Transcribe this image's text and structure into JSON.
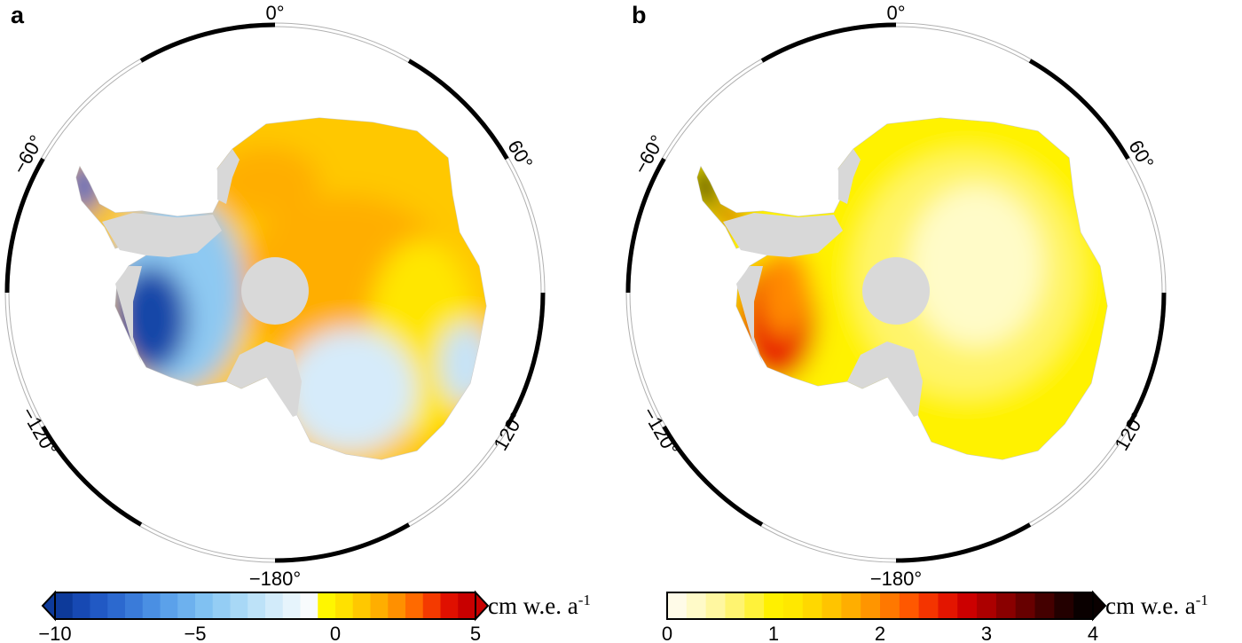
{
  "panels": [
    {
      "id": "a",
      "label": "a",
      "longitude_labels": [
        "0°",
        "60°",
        "120°",
        "−180°",
        "−120°",
        "−60°"
      ],
      "colorbar": {
        "ticks": [
          "−10",
          "−5",
          "0",
          "5"
        ],
        "range": [
          -10,
          5
        ],
        "extend": "both",
        "unit": "cm w.e. a",
        "unit_superscript": "-1",
        "colors": [
          "#0d3a9a",
          "#1749b3",
          "#2159c4",
          "#2c69cf",
          "#3a7bd9",
          "#4a8fe3",
          "#5ba1ea",
          "#6db1ee",
          "#80c1f2",
          "#94cdf4",
          "#a8d8f6",
          "#bde2f8",
          "#d2ebfa",
          "#e6f4fc",
          "#f8fbfd",
          "#fff600",
          "#ffe100",
          "#ffc800",
          "#ffae00",
          "#ff9000",
          "#ff6a00",
          "#f43a00",
          "#e01000",
          "#c80000"
        ]
      }
    },
    {
      "id": "b",
      "label": "b",
      "longitude_labels": [
        "0°",
        "60°",
        "120°",
        "−180°",
        "−120°",
        "−60°"
      ],
      "colorbar": {
        "ticks": [
          "0",
          "1",
          "2",
          "3",
          "4"
        ],
        "range": [
          0,
          4
        ],
        "extend": "max",
        "unit": "cm w.e. a",
        "unit_superscript": "-1",
        "colors": [
          "#fffbe8",
          "#fffac8",
          "#fff7a0",
          "#fff470",
          "#fff23a",
          "#fff000",
          "#ffe800",
          "#ffd800",
          "#ffc400",
          "#ffae00",
          "#ff9500",
          "#ff7800",
          "#ff5800",
          "#f43400",
          "#e31500",
          "#cc0000",
          "#ac0000",
          "#8a0000",
          "#670000",
          "#440000",
          "#230000",
          "#0a0000"
        ]
      }
    }
  ],
  "map_colors": {
    "land_gray": "#d8d8d8",
    "pole_hole": "#d9d9d9",
    "frame_black": "#000000",
    "frame_white": "#ffffff"
  }
}
